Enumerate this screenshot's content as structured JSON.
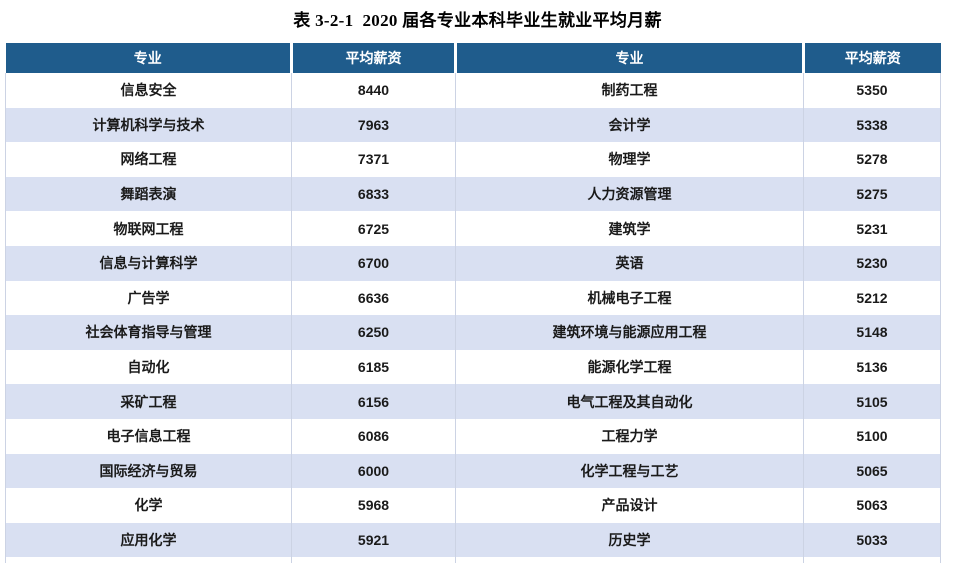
{
  "title": "表 3-2-1  2020 届各专业本科毕业生就业平均月薪",
  "table": {
    "headers": [
      "专业",
      "平均薪资",
      "专业",
      "平均薪资"
    ],
    "rows": [
      {
        "major_left": "信息安全",
        "salary_left": "8440",
        "major_right": "制药工程",
        "salary_right": "5350"
      },
      {
        "major_left": "计算机科学与技术",
        "salary_left": "7963",
        "major_right": "会计学",
        "salary_right": "5338"
      },
      {
        "major_left": "网络工程",
        "salary_left": "7371",
        "major_right": "物理学",
        "salary_right": "5278"
      },
      {
        "major_left": "舞蹈表演",
        "salary_left": "6833",
        "major_right": "人力资源管理",
        "salary_right": "5275"
      },
      {
        "major_left": "物联网工程",
        "salary_left": "6725",
        "major_right": "建筑学",
        "salary_right": "5231"
      },
      {
        "major_left": "信息与计算科学",
        "salary_left": "6700",
        "major_right": "英语",
        "salary_right": "5230"
      },
      {
        "major_left": "广告学",
        "salary_left": "6636",
        "major_right": "机械电子工程",
        "salary_right": "5212"
      },
      {
        "major_left": "社会体育指导与管理",
        "salary_left": "6250",
        "major_right": "建筑环境与能源应用工程",
        "salary_right": "5148"
      },
      {
        "major_left": "自动化",
        "salary_left": "6185",
        "major_right": "能源化学工程",
        "salary_right": "5136"
      },
      {
        "major_left": "采矿工程",
        "salary_left": "6156",
        "major_right": "电气工程及其自动化",
        "salary_right": "5105"
      },
      {
        "major_left": "电子信息工程",
        "salary_left": "6086",
        "major_right": "工程力学",
        "salary_right": "5100"
      },
      {
        "major_left": "国际经济与贸易",
        "salary_left": "6000",
        "major_right": "化学工程与工艺",
        "salary_right": "5065"
      },
      {
        "major_left": "化学",
        "salary_left": "5968",
        "major_right": "产品设计",
        "salary_right": "5063"
      },
      {
        "major_left": "应用化学",
        "salary_left": "5921",
        "major_right": "历史学",
        "salary_right": "5033"
      }
    ]
  },
  "colors": {
    "header_bg": "#1F5C8C",
    "header_text": "#FFFFFF",
    "row_alt": "#D9E0F2",
    "grid_border": "#CCD3E4"
  }
}
